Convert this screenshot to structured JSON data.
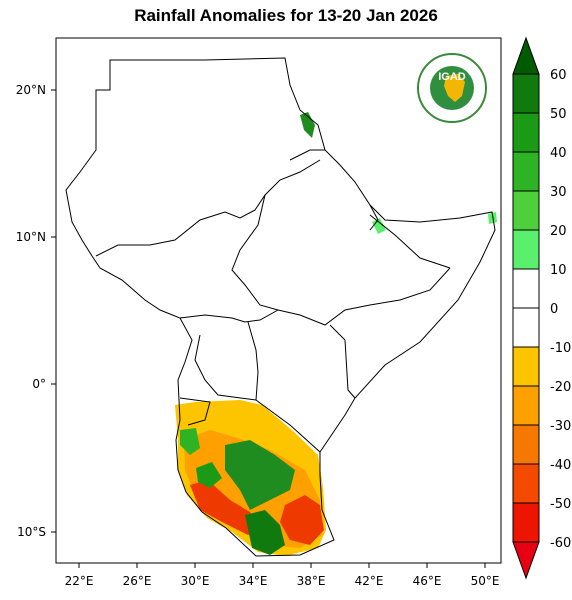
{
  "title": "Rainfall Anomalies for 13-20 Jan 2026",
  "map": {
    "lon_ticks": [
      "22°E",
      "26°E",
      "30°E",
      "34°E",
      "38°E",
      "42°E",
      "46°E",
      "50°E"
    ],
    "lat_ticks": [
      "20°N",
      "10°N",
      "0°",
      "10°S"
    ],
    "logo_text": "IGAD"
  },
  "legend": {
    "labels": [
      "60",
      "50",
      "40",
      "30",
      "20",
      "10",
      "0",
      "-10",
      "-20",
      "-30",
      "-40",
      "-50",
      "-60"
    ],
    "colors": [
      "#005a00",
      "#117a0f",
      "#1b9a16",
      "#2db324",
      "#4fcf3c",
      "#5bef6e",
      "#ffffff",
      "#ffffff",
      "#fdc500",
      "#fda000",
      "#f77800",
      "#f44a00",
      "#ee1500",
      "#e60012"
    ]
  },
  "colors": {
    "wet": "#1e8c1e",
    "wet_light": "#5bef6e",
    "dry_light": "#fdc500",
    "dry_mid": "#fda000",
    "dry_strong": "#ee3a00"
  }
}
